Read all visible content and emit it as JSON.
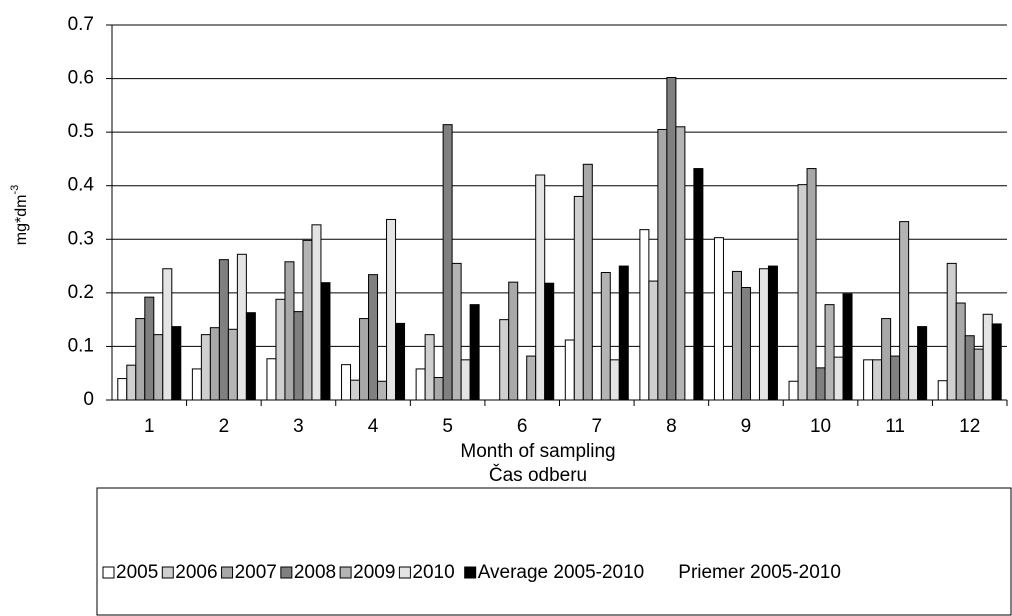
{
  "chart_data": {
    "type": "bar",
    "ylabel": "mg*dm",
    "ylabel_superscript": "-3",
    "xlabel": [
      "Month of sampling",
      "Čas odberu"
    ],
    "categories": [
      "1",
      "2",
      "3",
      "4",
      "5",
      "6",
      "7",
      "8",
      "9",
      "10",
      "11",
      "12"
    ],
    "series": [
      {
        "name": "2005",
        "color": "#ffffff",
        "values": [
          0.04,
          0.058,
          0.077,
          0.066,
          0.058,
          null,
          0.112,
          0.318,
          0.303,
          0.035,
          0.075,
          0.036
        ]
      },
      {
        "name": "2006",
        "color": "#cfcfcf",
        "values": [
          0.065,
          0.122,
          0.188,
          0.037,
          0.122,
          0.15,
          0.38,
          0.222,
          null,
          0.402,
          0.075,
          0.255
        ]
      },
      {
        "name": "2007",
        "color": "#a8a8a8",
        "values": [
          0.152,
          0.135,
          0.258,
          0.152,
          0.042,
          0.22,
          0.44,
          0.505,
          0.24,
          0.432,
          0.152,
          0.181
        ]
      },
      {
        "name": "2008",
        "color": "#808080",
        "values": [
          0.192,
          0.262,
          0.165,
          0.234,
          0.514,
          null,
          null,
          0.602,
          0.21,
          0.06,
          0.082,
          0.12
        ]
      },
      {
        "name": "2009",
        "color": "#b4b4b4",
        "values": [
          0.122,
          0.132,
          0.298,
          0.035,
          0.255,
          0.082,
          0.238,
          0.51,
          null,
          0.178,
          0.333,
          0.095
        ]
      },
      {
        "name": "2010",
        "color": "#e4e4e4",
        "values": [
          0.245,
          0.272,
          0.327,
          0.337,
          0.075,
          0.42,
          0.075,
          null,
          0.245,
          0.08,
          0.1,
          0.16
        ]
      },
      {
        "name": "Average 2005-2010",
        "color": "#000000",
        "values": [
          0.137,
          0.163,
          0.219,
          0.143,
          0.178,
          0.218,
          0.25,
          0.432,
          0.25,
          0.198,
          0.137,
          0.142
        ]
      }
    ],
    "legend_note": "Priemer 2005-2010",
    "ylim": [
      0,
      0.7
    ],
    "yticks": [
      0,
      0.1,
      0.2,
      0.3,
      0.4,
      0.5,
      0.6,
      0.7
    ],
    "grid": true,
    "legend": "bottom"
  }
}
